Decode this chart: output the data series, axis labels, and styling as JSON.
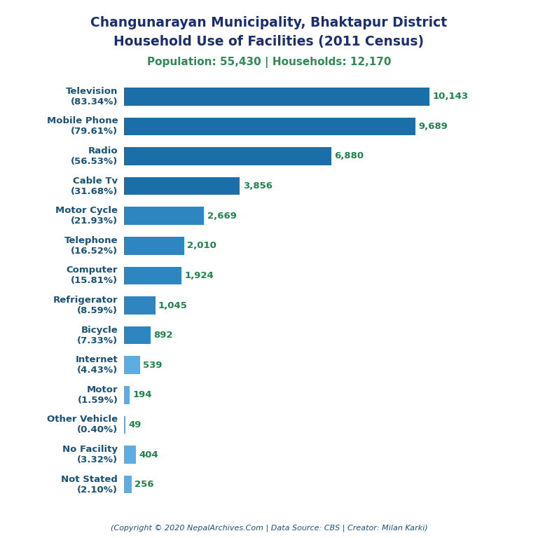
{
  "title_line1": "Changunarayan Municipality, Bhaktapur District",
  "title_line2": "Household Use of Facilities (2011 Census)",
  "subtitle": "Population: 55,430 | Households: 12,170",
  "footer": "(Copyright © 2020 NepalArchives.Com | Data Source: CBS | Creator: Milan Karki)",
  "categories": [
    "Not Stated\n(2.10%)",
    "No Facility\n(3.32%)",
    "Other Vehicle\n(0.40%)",
    "Motor\n(1.59%)",
    "Internet\n(4.43%)",
    "Bicycle\n(7.33%)",
    "Refrigerator\n(8.59%)",
    "Computer\n(15.81%)",
    "Telephone\n(16.52%)",
    "Motor Cycle\n(21.93%)",
    "Cable Tv\n(31.68%)",
    "Radio\n(56.53%)",
    "Mobile Phone\n(79.61%)",
    "Television\n(83.34%)"
  ],
  "values": [
    256,
    404,
    49,
    194,
    539,
    892,
    1045,
    1924,
    2010,
    2669,
    3856,
    6880,
    9689,
    10143
  ],
  "value_labels": [
    "256",
    "404",
    "49",
    "194",
    "539",
    "892",
    "1,045",
    "1,924",
    "2,010",
    "2,669",
    "3,856",
    "6,880",
    "9,689",
    "10,143"
  ],
  "title_color": "#1B2F6E",
  "subtitle_color": "#2E8B57",
  "label_color": "#1A5276",
  "value_color": "#1E8449",
  "footer_color": "#1A5276",
  "background_color": "#FFFFFF",
  "figsize": [
    7.68,
    7.68
  ],
  "dpi": 100
}
